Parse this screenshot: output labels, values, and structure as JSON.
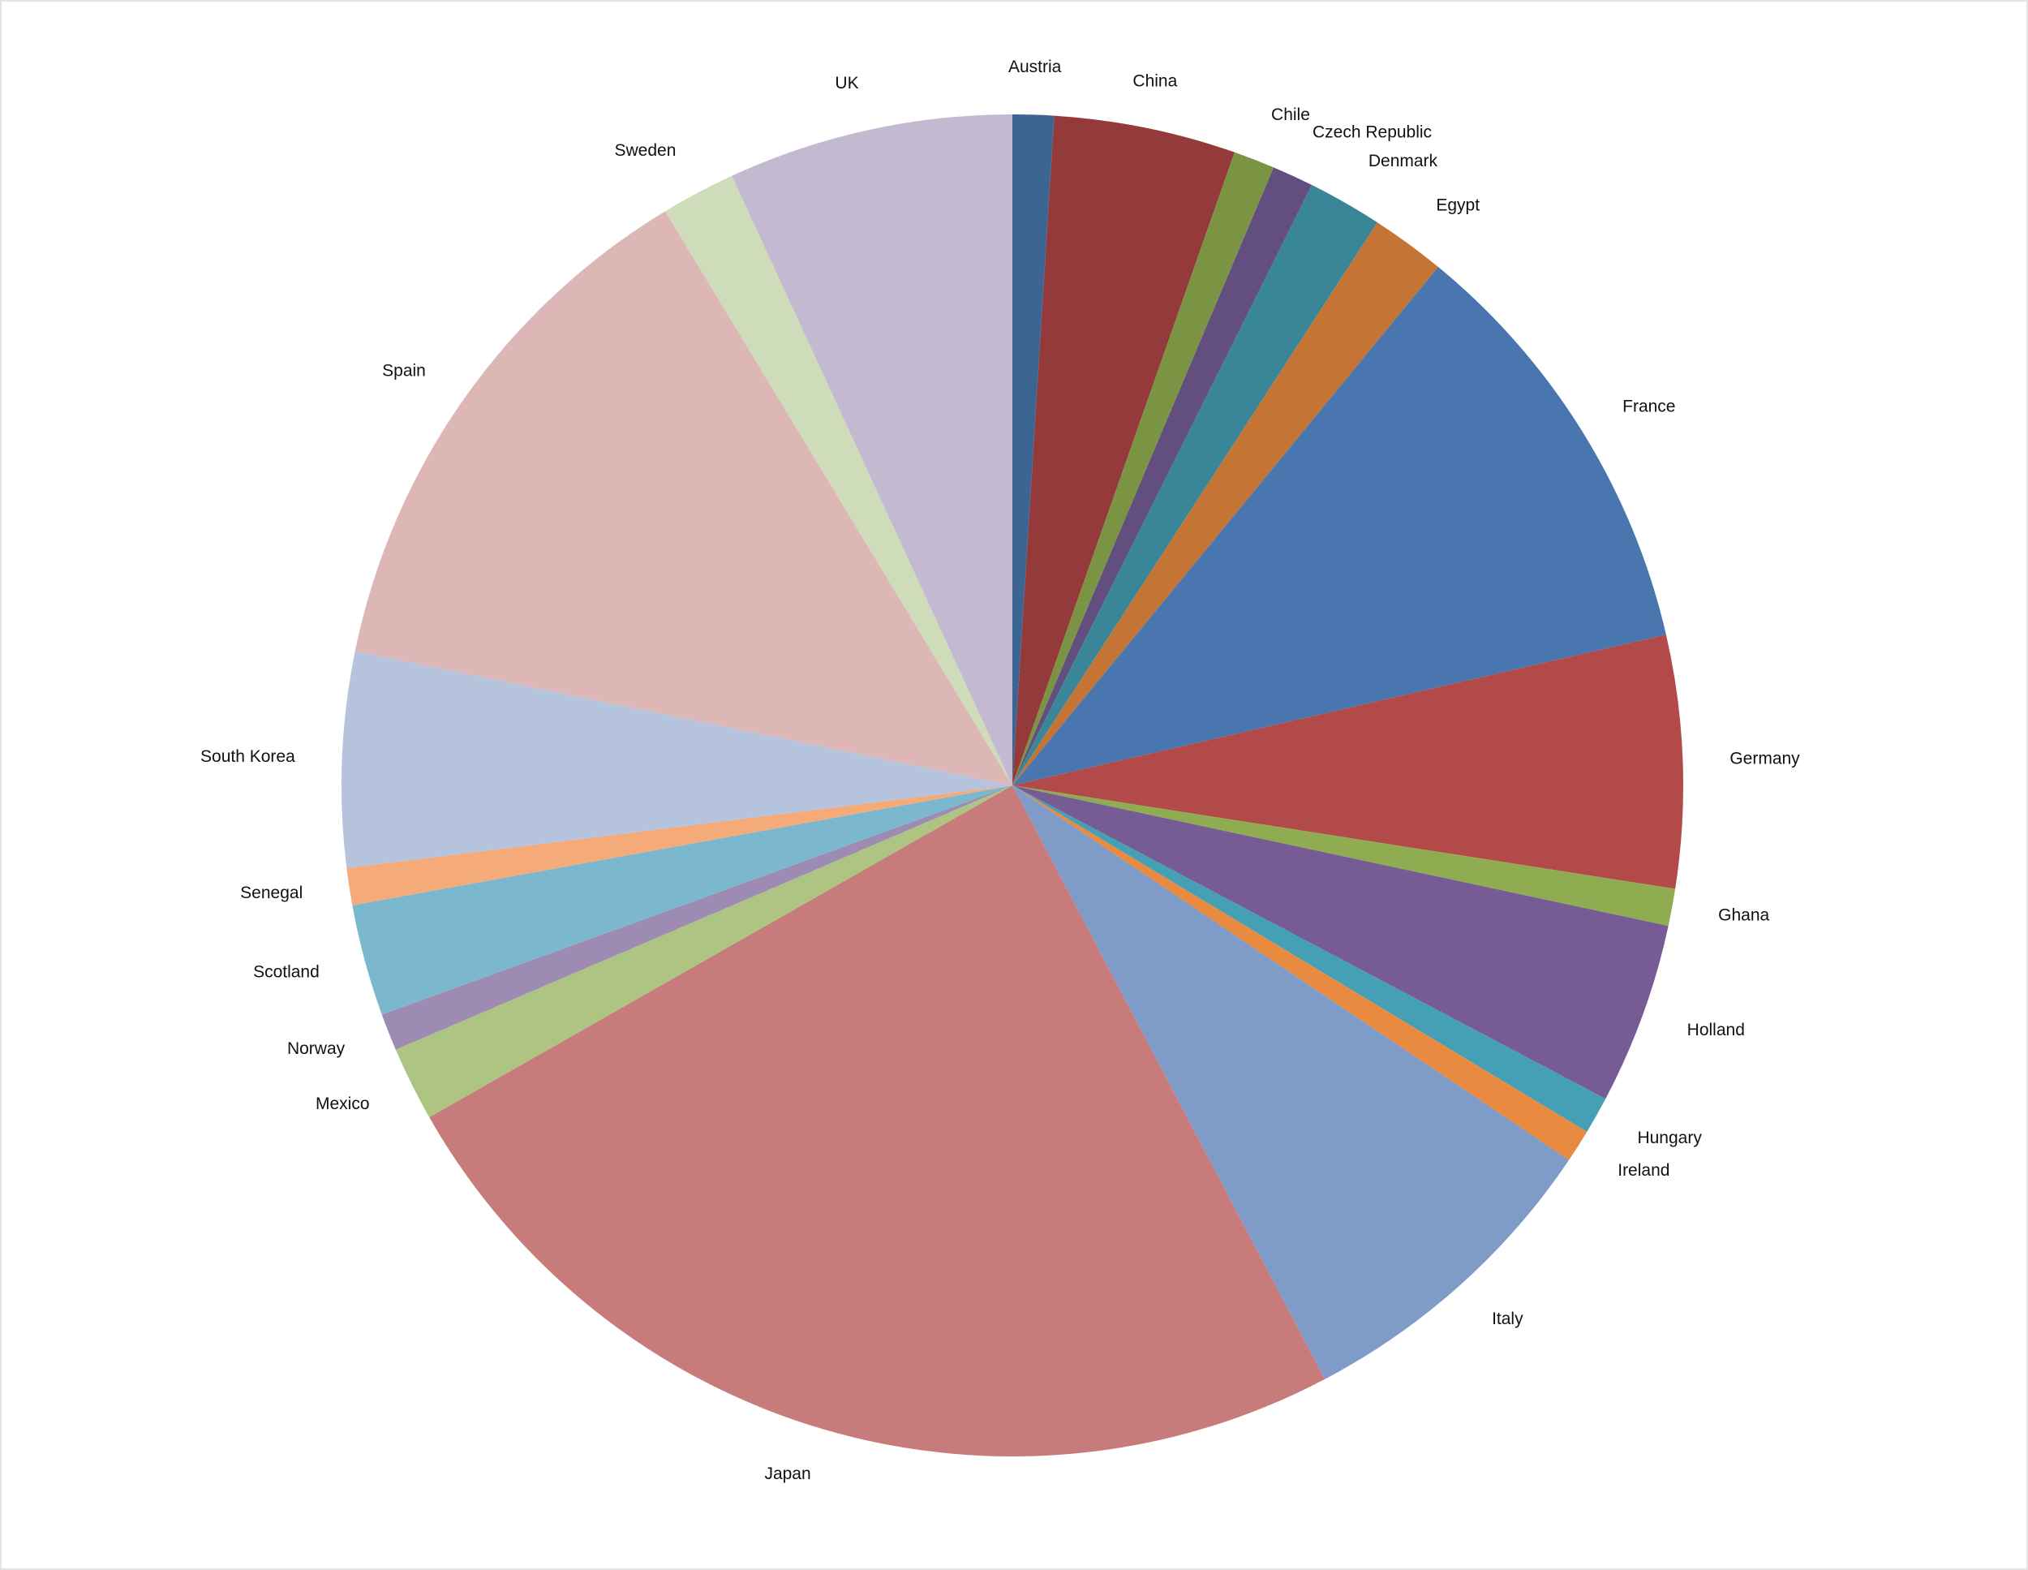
{
  "chart_data": {
    "type": "pie",
    "categories": [
      "Austria",
      "China",
      "Chile",
      "Czech Republic",
      "Denmark",
      "Egypt",
      "France",
      "Germany",
      "Ghana",
      "Holland",
      "Hungary",
      "Ireland",
      "Italy",
      "Japan",
      "Mexico",
      "Norway",
      "Scotland",
      "Senegal",
      "South Korea",
      "Spain",
      "Sweden",
      "UK"
    ],
    "values": [
      1,
      4.4,
      1,
      1,
      1.8,
      1.8,
      10.5,
      6.1,
      0.9,
      4.4,
      0.9,
      0.8,
      7.9,
      24.6,
      1.8,
      0.9,
      2.7,
      0.9,
      5.2,
      13.2,
      1.8,
      6.9
    ],
    "colors": [
      "#3d6594",
      "#953a3a",
      "#7a9443",
      "#634f7f",
      "#3a8699",
      "#c47535",
      "#4a76af",
      "#b34a4a",
      "#8fac50",
      "#775b94",
      "#45a0b6",
      "#e88a40",
      "#7f9bc7",
      "#c87b7b",
      "#aec482",
      "#9e8bb4",
      "#7bb8cd",
      "#f4aa79",
      "#b5c3dd",
      "#ddb6b6",
      "#cfdcb9",
      "#c3b9d0"
    ]
  }
}
